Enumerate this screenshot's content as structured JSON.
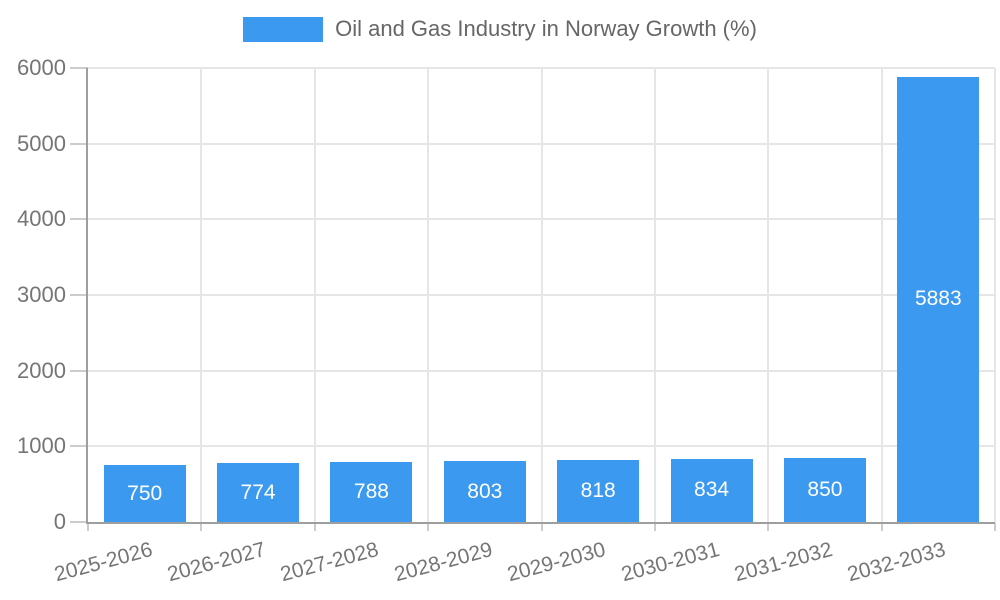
{
  "chart_data": {
    "type": "bar",
    "title": "Oil and Gas Industry in Norway Growth (%)",
    "legend": {
      "label": "Oil and Gas Industry in Norway Growth (%)",
      "position": "top"
    },
    "categories": [
      "2025-2026",
      "2026-2027",
      "2027-2028",
      "2028-2029",
      "2029-2030",
      "2030-2031",
      "2031-2032",
      "2032-2033"
    ],
    "series": [
      {
        "name": "Oil and Gas Industry in Norway Growth (%)",
        "values": [
          750,
          774,
          788,
          803,
          818,
          834,
          850,
          5883
        ]
      }
    ],
    "value_labels": [
      "750",
      "774",
      "788",
      "803",
      "818",
      "834",
      "850",
      "5883"
    ],
    "xlabel": "",
    "ylabel": "",
    "ylim": [
      0,
      6000
    ],
    "yticks": [
      0,
      1000,
      2000,
      3000,
      4000,
      5000,
      6000
    ],
    "ytick_labels": [
      "0",
      "1000",
      "2000",
      "3000",
      "4000",
      "5000",
      "6000"
    ],
    "x_label_rotation_deg": -15,
    "grid": true,
    "colors": {
      "bar": "#3B9AF0",
      "value_label": "#ffffff",
      "grid": "#E6E6E6",
      "axis": "#9E9E9E",
      "tick": "#CCCCCC",
      "axis_label": "#757575",
      "legend_text": "#666666",
      "background": "#ffffff"
    }
  }
}
